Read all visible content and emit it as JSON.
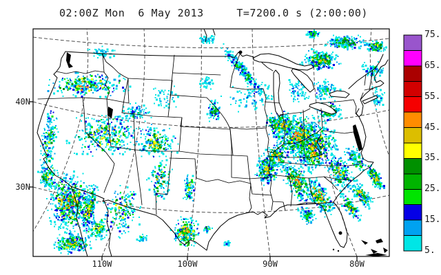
{
  "title": "02:00Z Mon  6 May 2013     T=7200.0 s (2:00:00)",
  "axes": {
    "lat": [
      {
        "label": "40N"
      },
      {
        "label": "30N"
      }
    ],
    "lon": [
      {
        "label": "110W"
      },
      {
        "label": "100W"
      },
      {
        "label": "90W"
      },
      {
        "label": "80W"
      }
    ]
  },
  "colorbar": {
    "labels": [
      "75.",
      "65.",
      "55.",
      "45.",
      "35.",
      "25.",
      "15.",
      "5."
    ],
    "values_top_to_bottom": [
      75,
      70,
      65,
      60,
      55,
      50,
      45,
      40,
      35,
      30,
      25,
      20,
      15,
      10,
      5
    ],
    "colors_top_to_bottom": [
      "#9955CC",
      "#FF00FF",
      "#AA0000",
      "#D20000",
      "#F50000",
      "#FF8C00",
      "#DCBE00",
      "#FFFF00",
      "#009000",
      "#00B400",
      "#00E400",
      "#0500E6",
      "#00A2F0",
      "#00E6E6"
    ]
  },
  "precip": {
    "palette_low_to_high": [
      "#00E6E6",
      "#00A2F0",
      "#0500E6",
      "#00E400",
      "#00B400",
      "#009000",
      "#FFFF00",
      "#DCBE00",
      "#FF8C00",
      "#F50000",
      "#D20000",
      "#AA0000",
      "#FF00FF",
      "#9955CC"
    ],
    "clusters": [
      [
        70,
        205,
        14,
        62,
        6,
        170,
        7
      ],
      [
        100,
        295,
        38,
        52,
        0,
        600,
        9
      ],
      [
        68,
        256,
        15,
        28,
        0,
        130,
        8
      ],
      [
        140,
        331,
        25,
        21,
        0,
        120,
        7
      ],
      [
        145,
        75,
        30,
        11,
        0,
        50,
        2
      ],
      [
        125,
        123,
        72,
        22,
        0,
        280,
        9
      ],
      [
        150,
        196,
        62,
        38,
        0,
        360,
        8
      ],
      [
        225,
        206,
        38,
        32,
        0,
        220,
        8
      ],
      [
        196,
        162,
        28,
        16,
        0,
        80,
        4
      ],
      [
        128,
        300,
        14,
        44,
        10,
        220,
        9
      ],
      [
        104,
        353,
        33,
        20,
        0,
        260,
        8
      ],
      [
        176,
        306,
        32,
        48,
        0,
        160,
        7
      ],
      [
        231,
        262,
        21,
        40,
        0,
        130,
        8
      ],
      [
        268,
        338,
        26,
        28,
        0,
        230,
        9
      ],
      [
        273,
        273,
        11,
        27,
        0,
        80,
        7
      ],
      [
        300,
        332,
        9,
        9,
        0,
        28,
        5
      ],
      [
        240,
        142,
        32,
        24,
        0,
        45,
        2
      ],
      [
        352,
        103,
        9,
        58,
        -40,
        240,
        5
      ],
      [
        309,
        161,
        13,
        20,
        0,
        100,
        6
      ],
      [
        362,
        140,
        45,
        26,
        0,
        80,
        3
      ],
      [
        300,
        120,
        18,
        13,
        0,
        35,
        2
      ],
      [
        408,
        180,
        30,
        26,
        0,
        330,
        8
      ],
      [
        432,
        196,
        40,
        30,
        -35,
        460,
        9
      ],
      [
        400,
        226,
        22,
        22,
        0,
        180,
        9
      ],
      [
        386,
        246,
        20,
        26,
        0,
        260,
        8
      ],
      [
        455,
        215,
        45,
        34,
        -38,
        560,
        9
      ],
      [
        430,
        263,
        19,
        45,
        -30,
        290,
        9
      ],
      [
        462,
        283,
        16,
        40,
        -32,
        240,
        9
      ],
      [
        492,
        250,
        22,
        34,
        -35,
        220,
        8
      ],
      [
        515,
        231,
        13,
        24,
        -30,
        100,
        6
      ],
      [
        524,
        283,
        12,
        30,
        -35,
        140,
        8
      ],
      [
        508,
        301,
        10,
        28,
        -35,
        130,
        8
      ],
      [
        445,
        311,
        12,
        20,
        -30,
        80,
        6
      ],
      [
        478,
        161,
        24,
        18,
        0,
        130,
        7
      ],
      [
        470,
        131,
        30,
        20,
        0,
        100,
        4
      ],
      [
        430,
        131,
        20,
        24,
        0,
        70,
        3
      ],
      [
        465,
        86,
        34,
        18,
        0,
        280,
        8
      ],
      [
        498,
        61,
        40,
        13,
        0,
        200,
        6
      ],
      [
        545,
        66,
        17,
        10,
        0,
        130,
        7
      ],
      [
        453,
        48,
        12,
        7,
        0,
        90,
        5
      ],
      [
        540,
        101,
        20,
        17,
        0,
        80,
        4
      ],
      [
        546,
        141,
        13,
        20,
        0,
        55,
        3
      ],
      [
        543,
        256,
        10,
        27,
        -32,
        160,
        8
      ],
      [
        300,
        57,
        17,
        8,
        0,
        45,
        2
      ],
      [
        205,
        346,
        10,
        8,
        0,
        28,
        5
      ],
      [
        330,
        353,
        7,
        6,
        0,
        16,
        4
      ]
    ]
  }
}
